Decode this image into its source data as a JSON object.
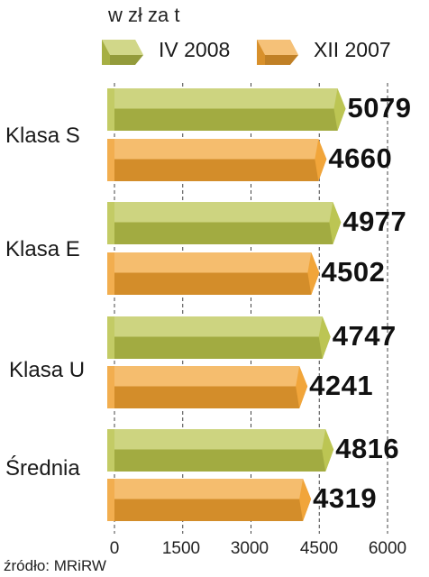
{
  "chart_data": {
    "type": "bar",
    "orientation": "horizontal",
    "unit_label": "w zł za t",
    "categories": [
      "Klasa S",
      "Klasa E",
      "Klasa U",
      "Średnia"
    ],
    "series": [
      {
        "name": "IV 2008",
        "values": [
          5079,
          4977,
          4747,
          4816
        ],
        "color": "#b8c24a"
      },
      {
        "name": "XII 2007",
        "values": [
          4660,
          4502,
          4241,
          4319
        ],
        "color": "#f0a030"
      }
    ],
    "x_ticks": [
      "0",
      "1500",
      "3000",
      "4500",
      "6000"
    ],
    "xlim": [
      0,
      6000
    ],
    "grid": true,
    "legend_position": "top",
    "source": "źródło: MRiRW"
  }
}
